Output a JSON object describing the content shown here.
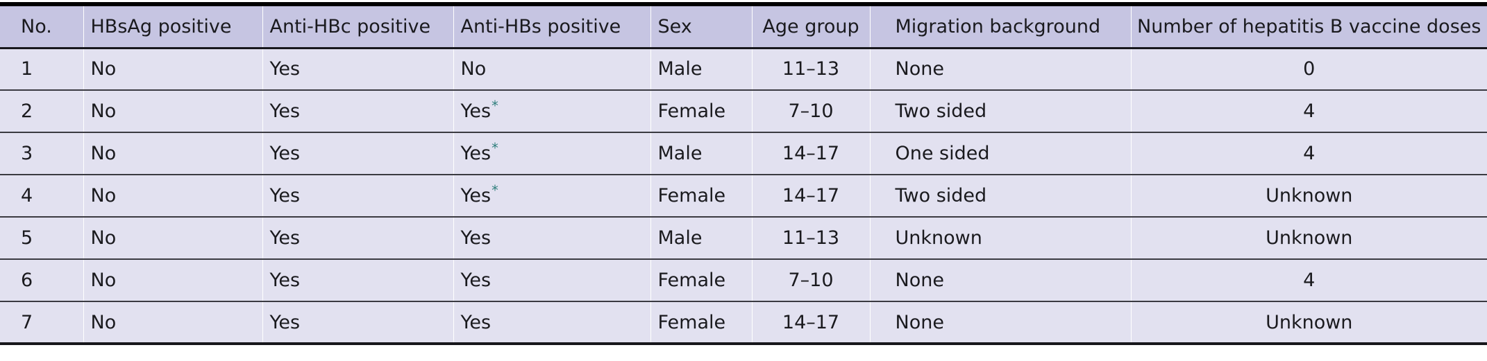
{
  "table": {
    "columns": [
      {
        "key": "no",
        "label": "No.",
        "align": "left"
      },
      {
        "key": "hbsag",
        "label": "HBsAg positive",
        "align": "left"
      },
      {
        "key": "anti_hbc",
        "label": "Anti-HBc positive",
        "align": "left"
      },
      {
        "key": "anti_hbs",
        "label": "Anti-HBs positive",
        "align": "left"
      },
      {
        "key": "sex",
        "label": "Sex",
        "align": "left"
      },
      {
        "key": "age_group",
        "label": "Age group",
        "align": "center"
      },
      {
        "key": "migration",
        "label": "Migration background",
        "align": "left"
      },
      {
        "key": "doses",
        "label": "Number of hepatitis B vaccine doses",
        "align": "center"
      }
    ],
    "footnote_marker": "*",
    "rows": [
      {
        "no": "1",
        "hbsag": "No",
        "anti_hbc": "Yes",
        "anti_hbs": "No",
        "anti_hbs_footnote": false,
        "sex": "Male",
        "age_group": "11–13",
        "migration": "None",
        "doses": "0"
      },
      {
        "no": "2",
        "hbsag": "No",
        "anti_hbc": "Yes",
        "anti_hbs": "Yes",
        "anti_hbs_footnote": true,
        "sex": "Female",
        "age_group": "7–10",
        "migration": "Two sided",
        "doses": "4"
      },
      {
        "no": "3",
        "hbsag": "No",
        "anti_hbc": "Yes",
        "anti_hbs": "Yes",
        "anti_hbs_footnote": true,
        "sex": "Male",
        "age_group": "14–17",
        "migration": "One sided",
        "doses": "4"
      },
      {
        "no": "4",
        "hbsag": "No",
        "anti_hbc": "Yes",
        "anti_hbs": "Yes",
        "anti_hbs_footnote": true,
        "sex": "Female",
        "age_group": "14–17",
        "migration": "Two sided",
        "doses": "Unknown"
      },
      {
        "no": "5",
        "hbsag": "No",
        "anti_hbc": "Yes",
        "anti_hbs": "Yes",
        "anti_hbs_footnote": false,
        "sex": "Male",
        "age_group": "11–13",
        "migration": "Unknown",
        "doses": "Unknown"
      },
      {
        "no": "6",
        "hbsag": "No",
        "anti_hbc": "Yes",
        "anti_hbs": "Yes",
        "anti_hbs_footnote": false,
        "sex": "Female",
        "age_group": "7–10",
        "migration": "None",
        "doses": "4"
      },
      {
        "no": "7",
        "hbsag": "No",
        "anti_hbc": "Yes",
        "anti_hbs": "Yes",
        "anti_hbs_footnote": false,
        "sex": "Female",
        "age_group": "14–17",
        "migration": "None",
        "doses": "Unknown"
      }
    ],
    "colors": {
      "header_bg": "#c6c5e2",
      "row_bg": "#e2e1f0",
      "footnote_color": "#2e7e7b",
      "top_rule": "#000000",
      "bottom_rule": "#17171c"
    }
  }
}
